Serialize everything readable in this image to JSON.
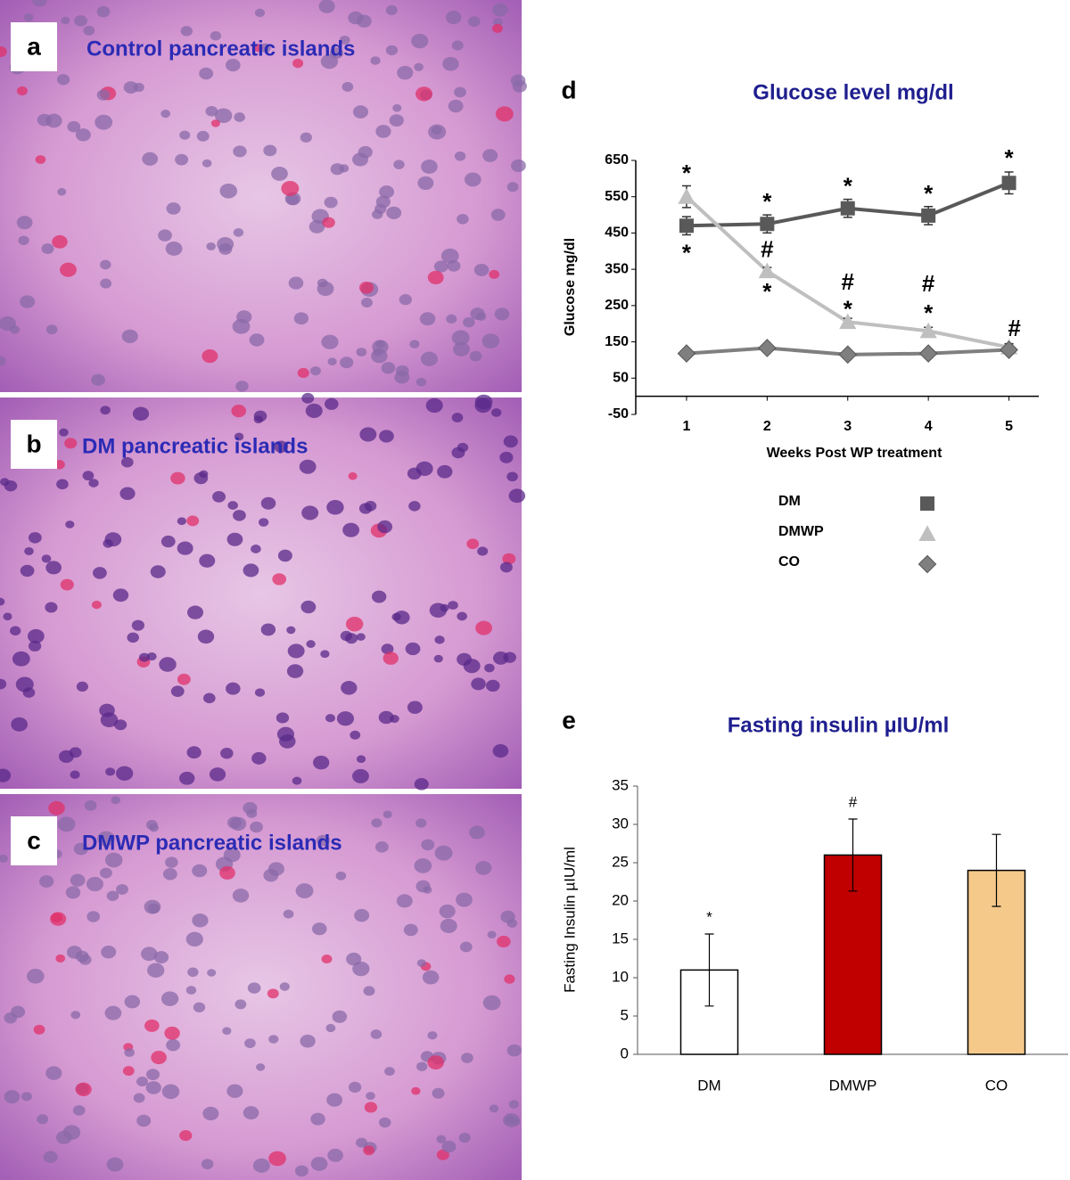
{
  "images": [
    {
      "label": "a",
      "caption": "Control pancreatic islands"
    },
    {
      "label": "b",
      "caption": "DM pancreatic islands"
    },
    {
      "label": "c",
      "caption": "DMWP pancreatic islands"
    }
  ],
  "chart_data": [
    {
      "type": "line",
      "panel": "d",
      "title": "Glucose level mg/dl",
      "ylabel": "Glucose  mg/dl",
      "xlabel": "Weeks Post WP treatment",
      "x": [
        1,
        2,
        3,
        4,
        5
      ],
      "xlim": [
        0.37,
        5.37
      ],
      "xticks": [
        1,
        2,
        3,
        4,
        5
      ],
      "ylim": [
        -50,
        650
      ],
      "yticks": [
        -50,
        50,
        150,
        250,
        350,
        450,
        550,
        650
      ],
      "series": [
        {
          "name": "DM",
          "color": "#595959",
          "marker": "square",
          "values": [
            470,
            475,
            518,
            498,
            588
          ],
          "errors": [
            25,
            25,
            25,
            25,
            30
          ]
        },
        {
          "name": "DMWP",
          "color": "#bfbfbf",
          "marker": "triangle",
          "values": [
            550,
            345,
            205,
            180,
            135
          ],
          "errors": [
            30,
            10,
            10,
            10,
            10
          ]
        },
        {
          "name": "CO",
          "color": "#7f7f7f",
          "marker": "diamond",
          "values": [
            118,
            133,
            115,
            118,
            128
          ],
          "errors": [
            5,
            5,
            5,
            5,
            5
          ]
        }
      ],
      "annotations": [
        {
          "text": "*",
          "x": 1,
          "y": 625
        },
        {
          "text": "*",
          "x": 1,
          "y": 405
        },
        {
          "text": "*",
          "x": 2,
          "y": 547
        },
        {
          "text": "#",
          "x": 2,
          "y": 400
        },
        {
          "text": "*",
          "x": 2,
          "y": 299
        },
        {
          "text": "*",
          "x": 3,
          "y": 589
        },
        {
          "text": "#",
          "x": 3,
          "y": 311
        },
        {
          "text": "*",
          "x": 3,
          "y": 250
        },
        {
          "text": "*",
          "x": 4,
          "y": 569
        },
        {
          "text": "#",
          "x": 4,
          "y": 306
        },
        {
          "text": "*",
          "x": 4,
          "y": 240
        },
        {
          "text": "*",
          "x": 5,
          "y": 667
        },
        {
          "text": "#",
          "x": 5,
          "y": 183
        }
      ],
      "legend": "bottom"
    },
    {
      "type": "bar",
      "panel": "e",
      "title": "Fasting insulin µIU/ml",
      "ylabel": "Fasting Insulin µIU/ml",
      "categories": [
        "DM",
        "DMWP",
        "CO"
      ],
      "values": [
        11,
        26,
        24
      ],
      "errors": [
        4.7,
        4.7,
        4.7
      ],
      "colors": [
        "#ffffff",
        "#c00000",
        "#f5c98a"
      ],
      "bar_annotations": [
        "*",
        "#",
        null
      ],
      "ylim": [
        0,
        35
      ],
      "yticks": [
        0,
        5,
        10,
        15,
        20,
        25,
        30,
        35
      ]
    }
  ]
}
